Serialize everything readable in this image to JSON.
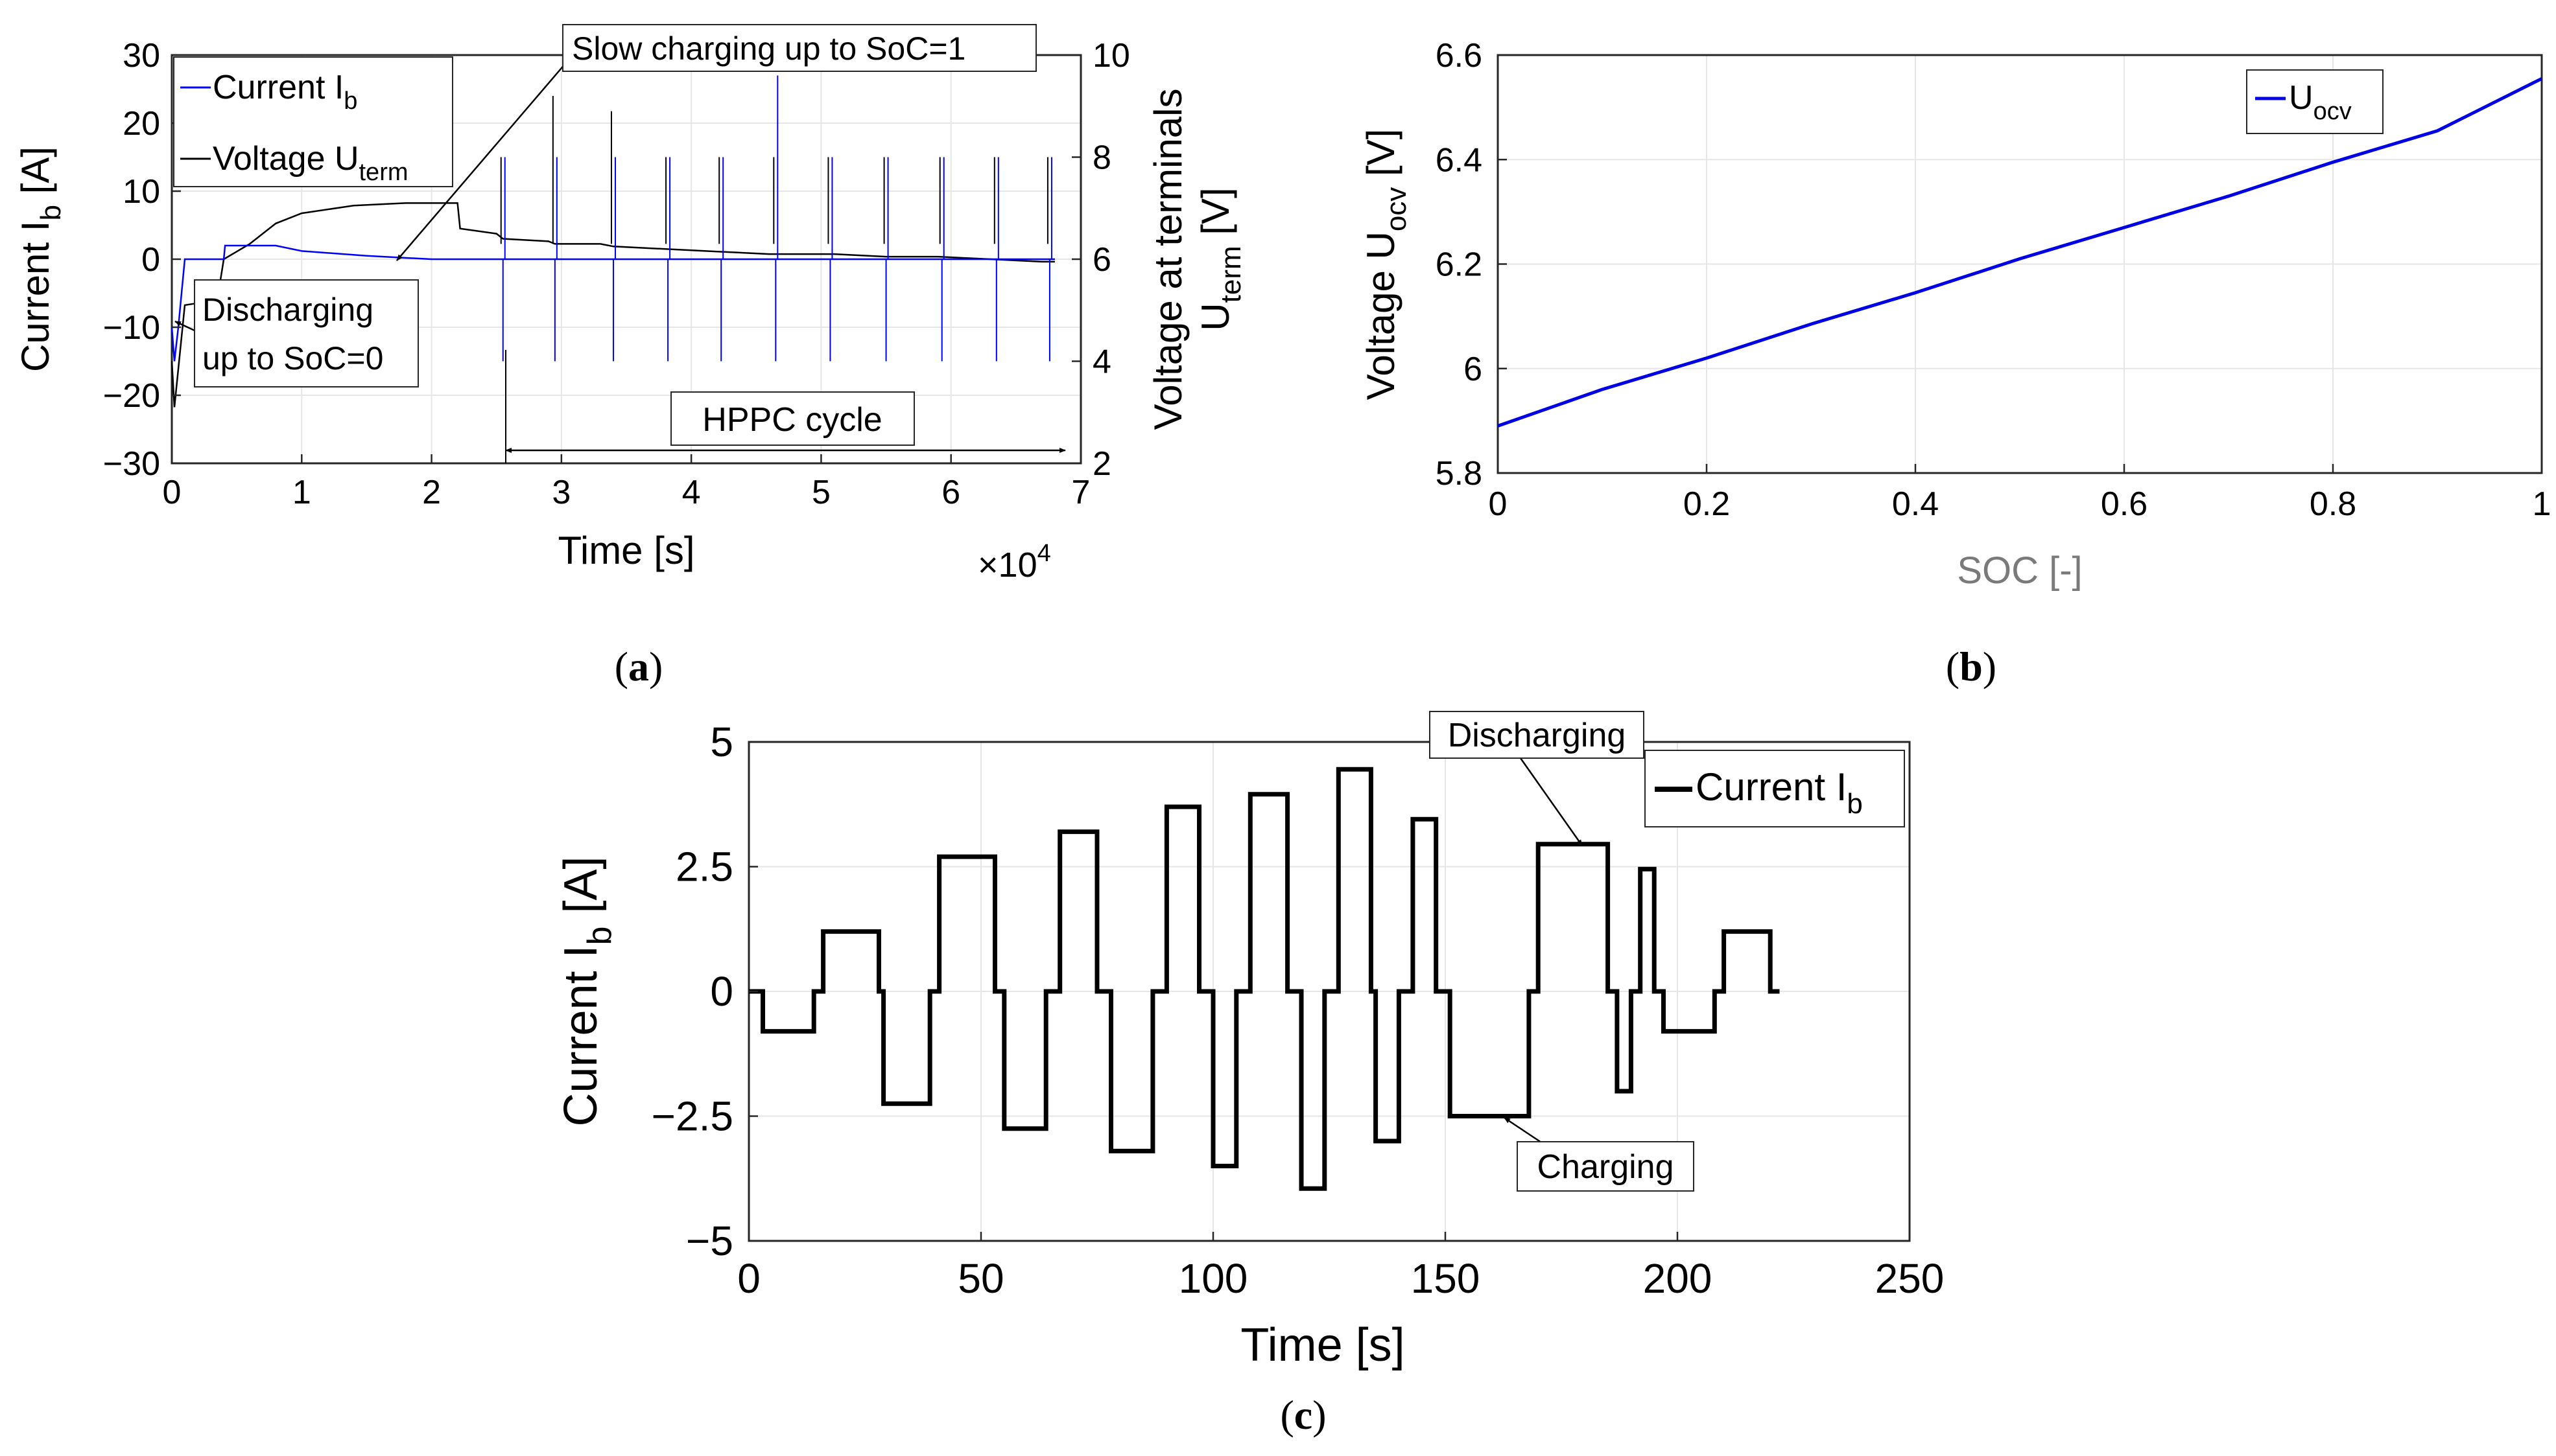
{
  "chart_data": [
    {
      "id": "a",
      "caption": "a",
      "type": "line",
      "xlabel": "Time [s]",
      "x_exponent": "×10^4",
      "xlim": [
        0,
        7
      ],
      "xticks": [
        "0",
        "1",
        "2",
        "3",
        "4",
        "5",
        "6",
        "7"
      ],
      "ylabel_left": "Current I_b [A]",
      "ylim_left": [
        -30,
        30
      ],
      "yticks_left": [
        "30",
        "20",
        "10",
        "0",
        "−10",
        "−20",
        "−30"
      ],
      "ylabel_right_line1": "Voltage at terminals",
      "ylabel_right_line2": "U_term [V]",
      "ylim_right": [
        2,
        10
      ],
      "yticks_right": [
        "10",
        "8",
        "6",
        "4",
        "2"
      ],
      "legend": [
        "Current I_b",
        "Voltage U_term"
      ],
      "series_colors": {
        "current": "#0000ff",
        "voltage": "#000000"
      },
      "annotations": {
        "slow_charging": "Slow charging up to SoC=1",
        "discharging": "Discharging",
        "discharging_line2": "up to SoC=0",
        "hppc": "HPPC cycle"
      },
      "series": [
        {
          "name": "Voltage U_term",
          "x": [
            0,
            0.02,
            0.1,
            0.35,
            0.4,
            0.6,
            0.8,
            1.0,
            1.4,
            1.8,
            2.2,
            2.22,
            2.5,
            2.55,
            2.9,
            2.95,
            3.3,
            3.4,
            3.8,
            4.2,
            4.6,
            5.1,
            5.5,
            5.9,
            6.3,
            6.7,
            6.8
          ],
          "y": [
            4.0,
            3.1,
            5.1,
            5.2,
            6.0,
            6.3,
            6.7,
            6.9,
            7.05,
            7.1,
            7.1,
            6.6,
            6.5,
            6.4,
            6.35,
            6.3,
            6.3,
            6.25,
            6.2,
            6.15,
            6.1,
            6.1,
            6.05,
            6.05,
            6.0,
            5.95,
            5.95
          ]
        },
        {
          "name": "Current I_b",
          "x": [
            0,
            0.02,
            0.05,
            0.1,
            0.4,
            0.41,
            0.8,
            1.0,
            1.5,
            2.0,
            2.5,
            6.8
          ],
          "y": [
            -10,
            -15,
            -10,
            0,
            0,
            2,
            2,
            1.2,
            0.5,
            0,
            0,
            0
          ]
        }
      ]
    },
    {
      "id": "b",
      "caption": "b",
      "type": "line",
      "xlabel": "SOC [-]",
      "ylabel": "Voltage U_ocv [V]",
      "xlim": [
        0,
        1
      ],
      "ylim": [
        5.8,
        6.6
      ],
      "xticks": [
        "0",
        "0.2",
        "0.4",
        "0.6",
        "0.8",
        "1"
      ],
      "yticks": [
        "6.6",
        "6.4",
        "6.2",
        "6",
        "5.8"
      ],
      "legend": [
        "U_ocv"
      ],
      "color": "#0000e6",
      "x": [
        0,
        0.1,
        0.2,
        0.3,
        0.4,
        0.5,
        0.6,
        0.7,
        0.8,
        0.9,
        1.0
      ],
      "y": [
        5.89,
        5.96,
        6.02,
        6.085,
        6.145,
        6.21,
        6.27,
        6.33,
        6.395,
        6.455,
        6.555
      ]
    },
    {
      "id": "c",
      "caption": "c",
      "type": "line",
      "xlabel": "Time [s]",
      "ylabel": "Current I_b [A]",
      "xlim": [
        0,
        250
      ],
      "ylim": [
        -5,
        5
      ],
      "xticks": [
        "0",
        "50",
        "100",
        "150",
        "200",
        "250"
      ],
      "yticks": [
        "5",
        "2.5",
        "0",
        "−2.5",
        "−5"
      ],
      "legend": [
        "Current I_b"
      ],
      "color": "#000000",
      "annotations": {
        "discharging": "Discharging",
        "charging": "Charging"
      },
      "x": [
        0,
        3,
        3,
        14,
        14,
        16,
        16,
        28,
        28,
        29,
        29,
        39,
        39,
        41,
        41,
        53,
        53,
        55,
        55,
        64,
        64,
        67,
        67,
        75,
        75,
        78,
        78,
        87,
        87,
        90,
        90,
        97,
        97,
        100,
        100,
        105,
        105,
        108,
        108,
        116,
        116,
        119,
        119,
        124,
        124,
        127,
        127,
        134,
        134,
        135,
        135,
        140,
        140,
        143,
        143,
        148,
        148,
        151,
        151,
        168,
        168,
        170,
        170,
        185,
        185,
        187,
        187,
        190,
        190,
        192,
        192,
        195,
        195,
        197,
        197,
        208,
        208,
        210,
        210,
        220,
        220,
        222
      ],
      "y": [
        0,
        0,
        -0.8,
        -0.8,
        0,
        0,
        1.2,
        1.2,
        0,
        0,
        -2.25,
        -2.25,
        0,
        0,
        2.7,
        2.7,
        0,
        0,
        -2.75,
        -2.75,
        0,
        0,
        3.2,
        3.2,
        0,
        0,
        -3.2,
        -3.2,
        0,
        0,
        3.7,
        3.7,
        0,
        0,
        -3.5,
        -3.5,
        0,
        0,
        3.95,
        3.95,
        0,
        0,
        -3.95,
        -3.95,
        0,
        0,
        4.45,
        4.45,
        0,
        0,
        -3.0,
        -3.0,
        0,
        0,
        3.45,
        3.45,
        0,
        0,
        -2.5,
        -2.5,
        0,
        0,
        2.95,
        2.95,
        0,
        0,
        -2.0,
        -2.0,
        0,
        0,
        2.45,
        2.45,
        0,
        0,
        -0.8,
        -0.8,
        0,
        0,
        1.2,
        1.2,
        0,
        0
      ]
    }
  ]
}
